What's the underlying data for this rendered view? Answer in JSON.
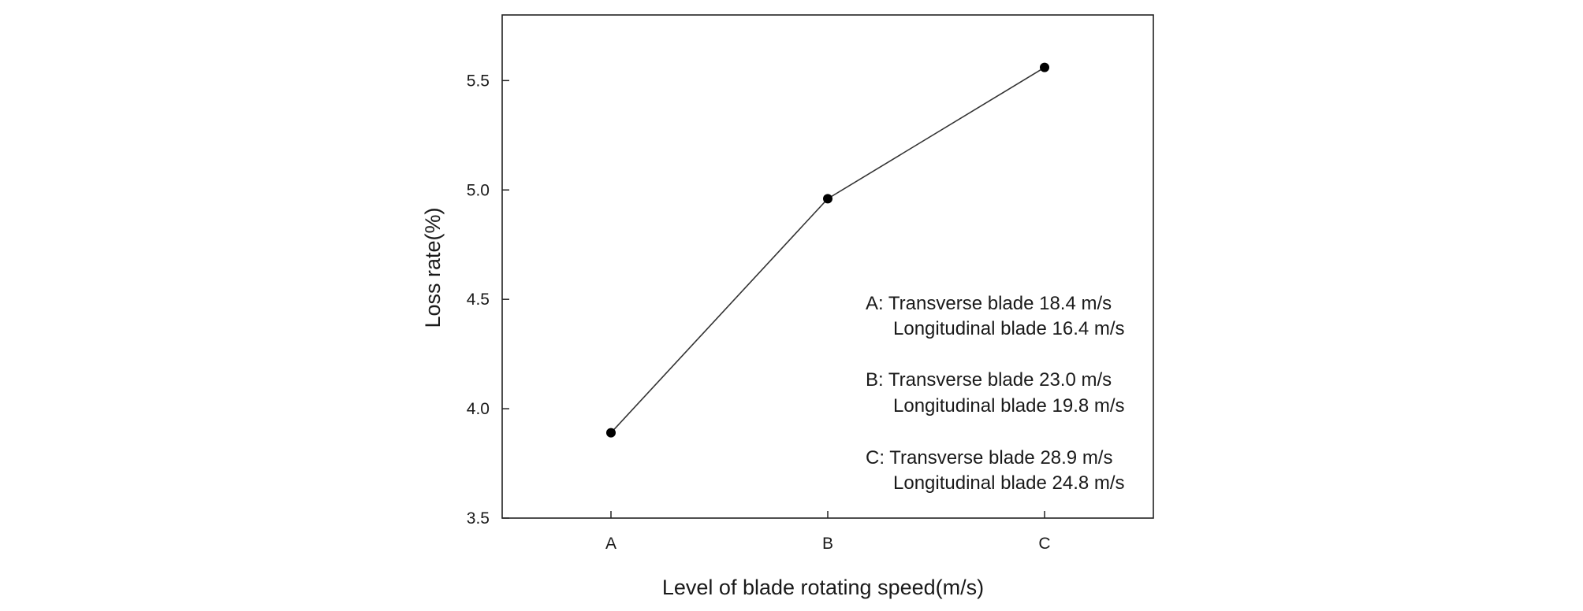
{
  "chart_data": {
    "type": "line",
    "title": "",
    "xlabel": "Level of blade rotating speed(m/s)",
    "ylabel": "Loss rate(%)",
    "categories": [
      "A",
      "B",
      "C"
    ],
    "series": [
      {
        "name": "Loss rate",
        "values": [
          3.89,
          4.96,
          5.56
        ]
      }
    ],
    "ylim": [
      3.5,
      5.8
    ],
    "yticks": [
      "3.5",
      "4.0",
      "4.5",
      "5.0",
      "5.5"
    ],
    "grid": false,
    "legend": "none",
    "annotations": [
      {
        "key": "A",
        "line1": "A: Transverse blade 18.4 m/s",
        "line2": "Longitudinal blade 16.4 m/s"
      },
      {
        "key": "B",
        "line1": "B: Transverse blade 23.0 m/s",
        "line2": "Longitudinal blade 19.8 m/s"
      },
      {
        "key": "C",
        "line1": "C: Transverse blade 28.9 m/s",
        "line2": "Longitudinal blade 24.8 m/s"
      }
    ],
    "colors": {
      "line": "#333333",
      "marker": "#000000",
      "axis": "#222222"
    }
  }
}
